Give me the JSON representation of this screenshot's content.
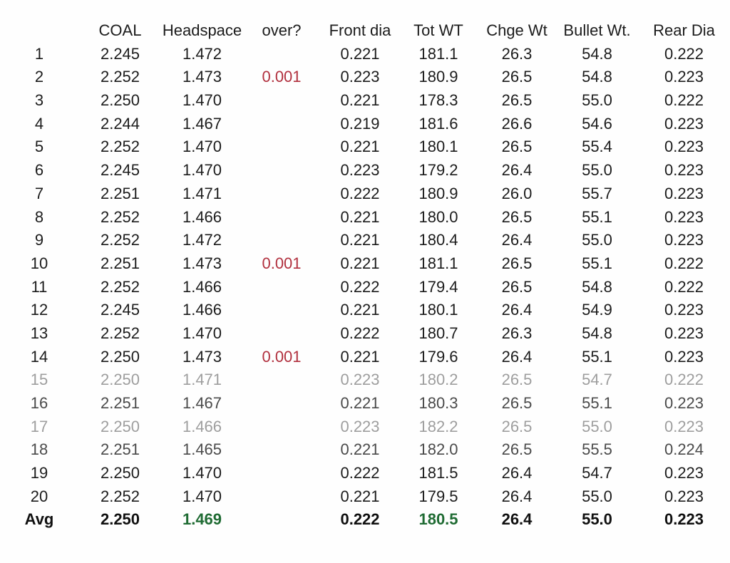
{
  "table": {
    "column_keys": [
      "num",
      "coal",
      "headspace",
      "over",
      "front_dia",
      "tot_wt",
      "chge_wt",
      "bullet_wt",
      "rear_dia"
    ],
    "headers": [
      "",
      "COAL",
      "Headspace",
      "over?",
      "Front dia",
      "Tot WT",
      "Chge Wt",
      "Bullet Wt.",
      "Rear Dia"
    ],
    "rows": [
      {
        "num": "1",
        "coal": "2.245",
        "headspace": "1.472",
        "over": "",
        "front_dia": "0.221",
        "tot_wt": "181.1",
        "chge_wt": "26.3",
        "bullet_wt": "54.8",
        "rear_dia": "0.222",
        "shade": "dark"
      },
      {
        "num": "2",
        "coal": "2.252",
        "headspace": "1.473",
        "over": "0.001",
        "front_dia": "0.223",
        "tot_wt": "180.9",
        "chge_wt": "26.5",
        "bullet_wt": "54.8",
        "rear_dia": "0.223",
        "shade": "dark"
      },
      {
        "num": "3",
        "coal": "2.250",
        "headspace": "1.470",
        "over": "",
        "front_dia": "0.221",
        "tot_wt": "178.3",
        "chge_wt": "26.5",
        "bullet_wt": "55.0",
        "rear_dia": "0.222",
        "shade": "dark"
      },
      {
        "num": "4",
        "coal": "2.244",
        "headspace": "1.467",
        "over": "",
        "front_dia": "0.219",
        "tot_wt": "181.6",
        "chge_wt": "26.6",
        "bullet_wt": "54.6",
        "rear_dia": "0.223",
        "shade": "dark"
      },
      {
        "num": "5",
        "coal": "2.252",
        "headspace": "1.470",
        "over": "",
        "front_dia": "0.221",
        "tot_wt": "180.1",
        "chge_wt": "26.5",
        "bullet_wt": "55.4",
        "rear_dia": "0.223",
        "shade": "dark"
      },
      {
        "num": "6",
        "coal": "2.245",
        "headspace": "1.470",
        "over": "",
        "front_dia": "0.223",
        "tot_wt": "179.2",
        "chge_wt": "26.4",
        "bullet_wt": "55.0",
        "rear_dia": "0.223",
        "shade": "dark"
      },
      {
        "num": "7",
        "coal": "2.251",
        "headspace": "1.471",
        "over": "",
        "front_dia": "0.222",
        "tot_wt": "180.9",
        "chge_wt": "26.0",
        "bullet_wt": "55.7",
        "rear_dia": "0.223",
        "shade": "dark"
      },
      {
        "num": "8",
        "coal": "2.252",
        "headspace": "1.466",
        "over": "",
        "front_dia": "0.221",
        "tot_wt": "180.0",
        "chge_wt": "26.5",
        "bullet_wt": "55.1",
        "rear_dia": "0.223",
        "shade": "dark"
      },
      {
        "num": "9",
        "coal": "2.252",
        "headspace": "1.472",
        "over": "",
        "front_dia": "0.221",
        "tot_wt": "180.4",
        "chge_wt": "26.4",
        "bullet_wt": "55.0",
        "rear_dia": "0.223",
        "shade": "dark"
      },
      {
        "num": "10",
        "coal": "2.251",
        "headspace": "1.473",
        "over": "0.001",
        "front_dia": "0.221",
        "tot_wt": "181.1",
        "chge_wt": "26.5",
        "bullet_wt": "55.1",
        "rear_dia": "0.222",
        "shade": "dark"
      },
      {
        "num": "11",
        "coal": "2.252",
        "headspace": "1.466",
        "over": "",
        "front_dia": "0.222",
        "tot_wt": "179.4",
        "chge_wt": "26.5",
        "bullet_wt": "54.8",
        "rear_dia": "0.222",
        "shade": "dark"
      },
      {
        "num": "12",
        "coal": "2.245",
        "headspace": "1.466",
        "over": "",
        "front_dia": "0.221",
        "tot_wt": "180.1",
        "chge_wt": "26.4",
        "bullet_wt": "54.9",
        "rear_dia": "0.223",
        "shade": "dark"
      },
      {
        "num": "13",
        "coal": "2.252",
        "headspace": "1.470",
        "over": "",
        "front_dia": "0.222",
        "tot_wt": "180.7",
        "chge_wt": "26.3",
        "bullet_wt": "54.8",
        "rear_dia": "0.223",
        "shade": "dark"
      },
      {
        "num": "14",
        "coal": "2.250",
        "headspace": "1.473",
        "over": "0.001",
        "front_dia": "0.221",
        "tot_wt": "179.6",
        "chge_wt": "26.4",
        "bullet_wt": "55.1",
        "rear_dia": "0.223",
        "shade": "dark"
      },
      {
        "num": "15",
        "coal": "2.250",
        "headspace": "1.471",
        "over": "",
        "front_dia": "0.223",
        "tot_wt": "180.2",
        "chge_wt": "26.5",
        "bullet_wt": "54.7",
        "rear_dia": "0.222",
        "shade": "faded"
      },
      {
        "num": "16",
        "coal": "2.251",
        "headspace": "1.467",
        "over": "",
        "front_dia": "0.221",
        "tot_wt": "180.3",
        "chge_wt": "26.5",
        "bullet_wt": "55.1",
        "rear_dia": "0.223",
        "shade": "mid"
      },
      {
        "num": "17",
        "coal": "2.250",
        "headspace": "1.466",
        "over": "",
        "front_dia": "0.223",
        "tot_wt": "182.2",
        "chge_wt": "26.5",
        "bullet_wt": "55.0",
        "rear_dia": "0.223",
        "shade": "faded"
      },
      {
        "num": "18",
        "coal": "2.251",
        "headspace": "1.465",
        "over": "",
        "front_dia": "0.221",
        "tot_wt": "182.0",
        "chge_wt": "26.5",
        "bullet_wt": "55.5",
        "rear_dia": "0.224",
        "shade": "mid"
      },
      {
        "num": "19",
        "coal": "2.250",
        "headspace": "1.470",
        "over": "",
        "front_dia": "0.222",
        "tot_wt": "181.5",
        "chge_wt": "26.4",
        "bullet_wt": "54.7",
        "rear_dia": "0.223",
        "shade": "dark"
      },
      {
        "num": "20",
        "coal": "2.252",
        "headspace": "1.470",
        "over": "",
        "front_dia": "0.221",
        "tot_wt": "179.5",
        "chge_wt": "26.4",
        "bullet_wt": "55.0",
        "rear_dia": "0.223",
        "shade": "dark"
      }
    ],
    "avg_row": {
      "num": "Avg",
      "coal": "2.250",
      "headspace": "1.469",
      "over": "",
      "front_dia": "0.222",
      "tot_wt": "180.5",
      "chge_wt": "26.4",
      "bullet_wt": "55.0",
      "rear_dia": "0.223",
      "green_keys": [
        "headspace",
        "tot_wt"
      ]
    }
  },
  "colors": {
    "over_red": "#b1303e",
    "avg_green": "#1f6b33",
    "text": "#1c1c1c",
    "faded_text": "#9e9e9e",
    "background": "#fefefe"
  }
}
